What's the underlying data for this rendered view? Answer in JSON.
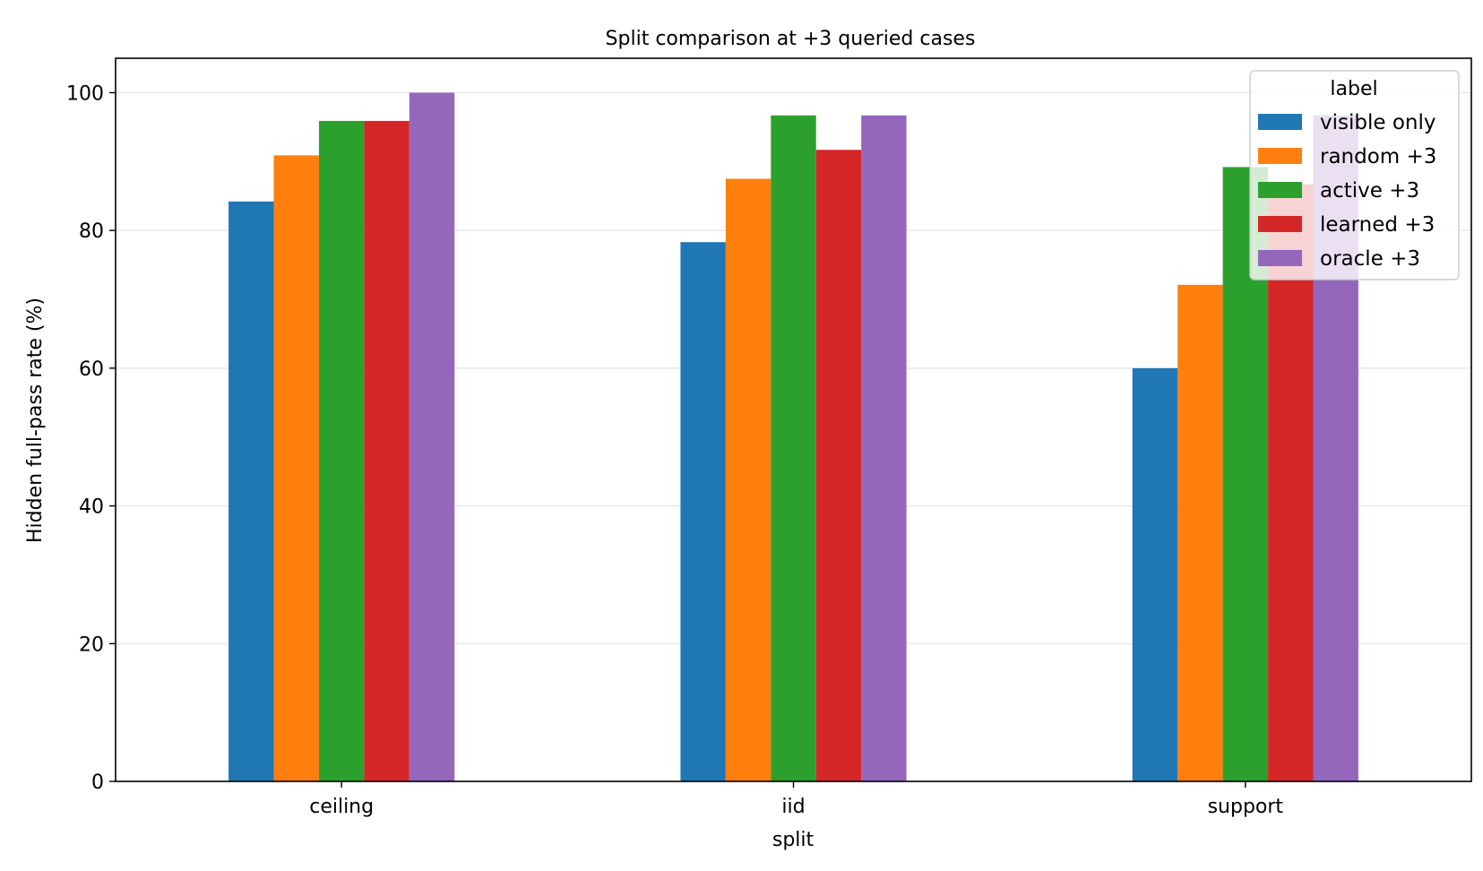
{
  "chart_data": {
    "type": "bar",
    "title": "Split comparison at +3 queried cases",
    "xlabel": "split",
    "ylabel": "Hidden full-pass rate (%)",
    "categories": [
      "ceiling",
      "iid",
      "support"
    ],
    "series": [
      {
        "name": "visible only",
        "color": "#1f77b4",
        "values": [
          84.2,
          78.3,
          60.0
        ]
      },
      {
        "name": "random +3",
        "color": "#ff7f0e",
        "values": [
          90.9,
          87.5,
          72.1
        ]
      },
      {
        "name": "active +3",
        "color": "#2ca02c",
        "values": [
          95.9,
          96.7,
          89.2
        ]
      },
      {
        "name": "learned +3",
        "color": "#d62728",
        "values": [
          95.9,
          91.7,
          86.7
        ]
      },
      {
        "name": "oracle +3",
        "color": "#9467bd",
        "values": [
          100.0,
          96.7,
          96.7
        ]
      }
    ],
    "ylim": [
      0,
      105
    ],
    "yticks": [
      0,
      20,
      40,
      60,
      80,
      100
    ],
    "grid": "horizontal",
    "legend": {
      "title": "label",
      "placement": "top-right"
    }
  }
}
